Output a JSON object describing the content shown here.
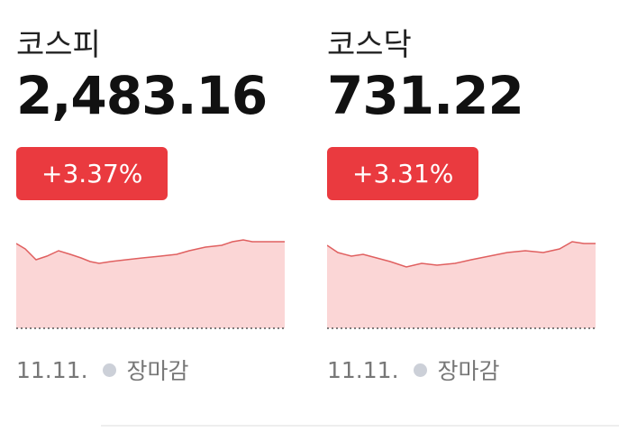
{
  "cards": [
    {
      "name": "코스피",
      "value": "2,483.16",
      "change": "+3.37%",
      "date": "11.11.",
      "status": "장마감"
    },
    {
      "name": "코스닥",
      "value": "731.22",
      "change": "+3.31%",
      "date": "11.11.",
      "status": "장마감"
    }
  ]
}
